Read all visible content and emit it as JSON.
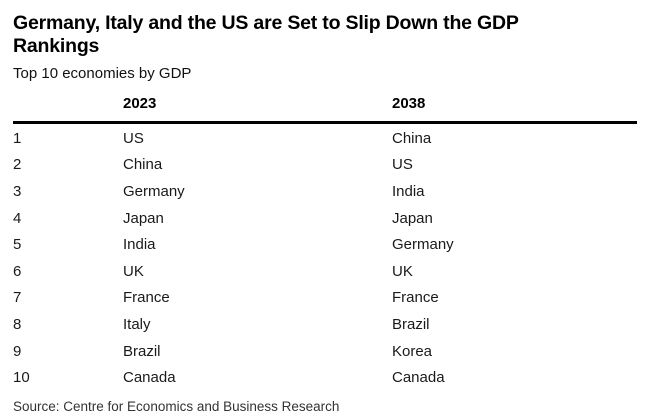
{
  "header": {
    "title_line1": "Germany, Italy and the US are Set to Slip Down the GDP",
    "title_line2": "Rankings",
    "subtitle": "Top 10 economies by GDP"
  },
  "table": {
    "headers": {
      "rank": "",
      "col2023": "2023",
      "col2038": "2038"
    },
    "rows": [
      {
        "rank": "1",
        "y2023": "US",
        "y2038": "China"
      },
      {
        "rank": "2",
        "y2023": "China",
        "y2038": "US"
      },
      {
        "rank": "3",
        "y2023": "Germany",
        "y2038": "India"
      },
      {
        "rank": "4",
        "y2023": "Japan",
        "y2038": "Japan"
      },
      {
        "rank": "5",
        "y2023": "India",
        "y2038": "Germany"
      },
      {
        "rank": "6",
        "y2023": "UK",
        "y2038": "UK"
      },
      {
        "rank": "7",
        "y2023": "France",
        "y2038": "France"
      },
      {
        "rank": "8",
        "y2023": "Italy",
        "y2038": "Brazil"
      },
      {
        "rank": "9",
        "y2023": "Brazil",
        "y2038": "Korea"
      },
      {
        "rank": "10",
        "y2023": "Canada",
        "y2038": "Canada"
      }
    ]
  },
  "source": "Source: Centre for Economics and Business Research",
  "colors": {
    "text": "#000000",
    "header_rule": "#000000",
    "source_text": "#333333",
    "background": "#ffffff"
  },
  "chart_data": {
    "type": "table",
    "title": "Germany, Italy and the US are Set to Slip Down the GDP Rankings",
    "subtitle": "Top 10 economies by GDP",
    "columns": [
      "rank",
      "2023",
      "2038"
    ],
    "rows": [
      [
        1,
        "US",
        "China"
      ],
      [
        2,
        "China",
        "US"
      ],
      [
        3,
        "Germany",
        "India"
      ],
      [
        4,
        "Japan",
        "Japan"
      ],
      [
        5,
        "India",
        "Germany"
      ],
      [
        6,
        "UK",
        "UK"
      ],
      [
        7,
        "France",
        "France"
      ],
      [
        8,
        "Italy",
        "Brazil"
      ],
      [
        9,
        "Brazil",
        "Korea"
      ],
      [
        10,
        "Canada",
        "Canada"
      ]
    ],
    "source": "Source: Centre for Economics and Business Research",
    "layout_hints": {
      "header_rule": "thick-black-below-header",
      "row_grid": "off"
    }
  }
}
